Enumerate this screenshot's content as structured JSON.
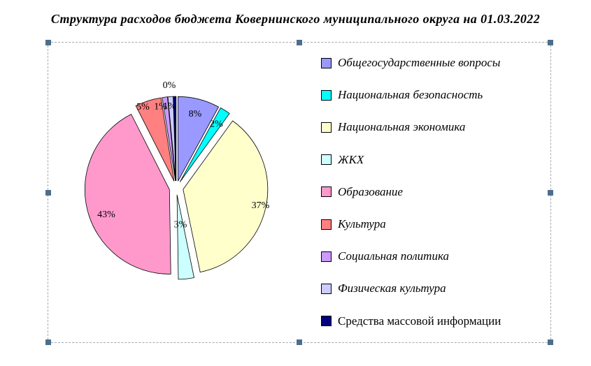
{
  "chart_data": {
    "type": "pie",
    "title": "Структура расходов бюджета Ковернинского муниципального округа на 01.03.2022",
    "legend_position": "right",
    "exploded": true,
    "background": "#FFFFFF",
    "label_color": "#000000",
    "slices": [
      {
        "label": "Общегосударственные вопросы",
        "value": 8,
        "display": "8%",
        "color": "#9999FF",
        "label_r": 0.83,
        "label_da": 0
      },
      {
        "label": "Национальная безопасность",
        "value": 2,
        "display": "2%",
        "color": "#00FFFF",
        "label_r": 0.82,
        "label_da": 0
      },
      {
        "label": "Национальная экономика",
        "value": 37,
        "display": "37%",
        "color": "#FFFFCC",
        "label_r": 0.94,
        "label_da": 0
      },
      {
        "label": "ЖКХ",
        "value": 3,
        "display": "3%",
        "color": "#CCFFFF",
        "label_r": 0.41,
        "label_da": 0
      },
      {
        "label": "Образование",
        "value": 43,
        "display": "43%",
        "color": "#FF99CC",
        "label_r": 0.82,
        "label_da": -7.4
      },
      {
        "label": "Культура",
        "value": 5,
        "display": "5%",
        "color": "#FF8080",
        "label_r": 0.95,
        "label_da": -4.6
      },
      {
        "label": "Социальная политика",
        "value": 1,
        "display": "1%",
        "color": "#CC99FF",
        "label_r": 0.9,
        "label_da": -3.8
      },
      {
        "label": "Физическая культура",
        "value": 1,
        "display": "1%",
        "color": "#CCCCFF",
        "label_r": 0.89,
        "label_da": -1.1
      },
      {
        "label": "Средства массовой информации",
        "value": 0,
        "display": "0%",
        "color": "#000080",
        "label_r": 1.12,
        "label_da": -3.0
      }
    ]
  },
  "selection": {
    "border_color": "#A0AAB2",
    "handle_color": "#4E6D8E"
  }
}
